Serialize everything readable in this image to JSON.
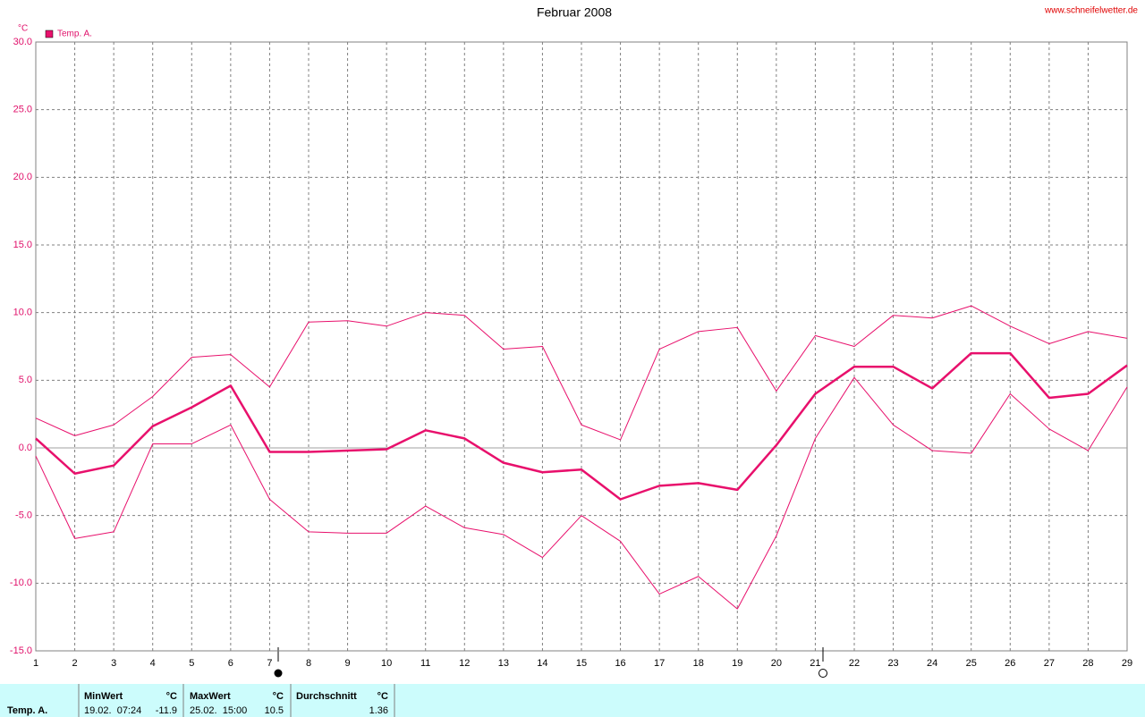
{
  "chart_data": {
    "type": "line",
    "title": "Februar 2008",
    "source": "www.schneifelwetter.de",
    "y_label": "°C",
    "x": [
      1,
      2,
      3,
      4,
      5,
      6,
      7,
      8,
      9,
      10,
      11,
      12,
      13,
      14,
      15,
      16,
      17,
      18,
      19,
      20,
      21,
      22,
      23,
      24,
      25,
      26,
      27,
      28,
      29
    ],
    "xlim": [
      1,
      29
    ],
    "xticks": [
      1,
      2,
      3,
      4,
      5,
      6,
      7,
      8,
      9,
      10,
      11,
      12,
      13,
      14,
      15,
      16,
      17,
      18,
      19,
      20,
      21,
      22,
      23,
      24,
      25,
      26,
      27,
      28,
      29
    ],
    "ylim": [
      -15,
      30
    ],
    "yticks": [
      {
        "value": -15,
        "label": "-15.0"
      },
      {
        "value": -10,
        "label": "-10.0"
      },
      {
        "value": -5,
        "label": "-5.0"
      },
      {
        "value": 0,
        "label": "0.0"
      },
      {
        "value": 5,
        "label": "5.0"
      },
      {
        "value": 10,
        "label": "10.0"
      },
      {
        "value": 15,
        "label": "15.0"
      },
      {
        "value": 20,
        "label": "20.0"
      },
      {
        "value": 25,
        "label": "25.0"
      },
      {
        "value": 30,
        "label": "30.0"
      }
    ],
    "grid": true,
    "legend": "top-left",
    "series": [
      {
        "name": "Temp. A.",
        "color": "#e8106c",
        "values": [
          0.7,
          -1.9,
          -1.3,
          1.6,
          3.0,
          4.6,
          -0.3,
          -0.3,
          -0.2,
          -0.1,
          1.3,
          0.7,
          -1.1,
          -1.8,
          -1.6,
          -3.8,
          -2.8,
          -2.6,
          -3.1,
          0.2,
          4.0,
          6.0,
          6.0,
          4.4,
          7.0,
          7.0,
          3.7,
          4.0,
          6.1
        ]
      },
      {
        "color": "#e8106c",
        "values": [
          2.2,
          0.9,
          1.7,
          3.8,
          6.7,
          6.9,
          4.5,
          9.3,
          9.4,
          9.0,
          10.0,
          9.8,
          7.3,
          7.5,
          1.7,
          0.6,
          7.3,
          8.6,
          8.9,
          4.2,
          8.3,
          7.5,
          9.8,
          9.6,
          10.5,
          9.0,
          7.7,
          8.6,
          8.1
        ]
      },
      {
        "color": "#e8106c",
        "values": [
          -0.6,
          -6.7,
          -6.2,
          0.3,
          0.3,
          1.7,
          -3.8,
          -6.2,
          -6.3,
          -6.3,
          -4.3,
          -5.9,
          -6.4,
          -8.1,
          -5.0,
          -6.9,
          -10.8,
          -9.5,
          -11.9,
          -6.5,
          0.7,
          5.2,
          1.7,
          -0.2,
          -0.4,
          4.0,
          1.4,
          -0.2,
          4.5
        ]
      }
    ]
  },
  "stats": {
    "row_label": "Temp. A.",
    "min": {
      "header": "MinWert",
      "unit": "°C",
      "when": "19.02.  07:24",
      "value": "-11.9"
    },
    "max": {
      "header": "MaxWert",
      "unit": "°C",
      "when": "25.02.  15:00",
      "value": "10.5"
    },
    "avg": {
      "header": "Durchschnitt",
      "unit": "°C",
      "value": "1.36"
    }
  }
}
